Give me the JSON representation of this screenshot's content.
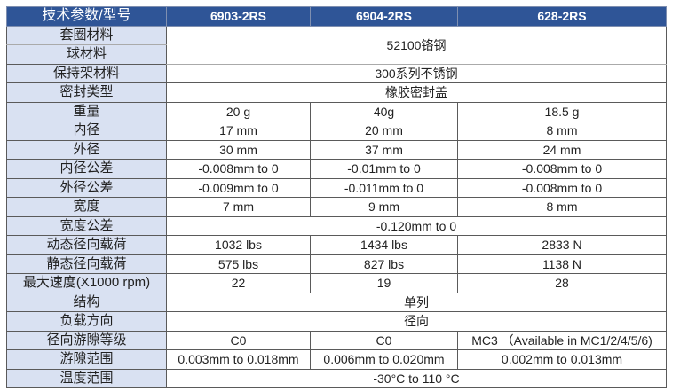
{
  "header": [
    "技术参数/型号",
    "6903-2RS",
    "6904-2RS",
    "628-2RS"
  ],
  "colors": {
    "header_bg": "#2F5597",
    "label_bg": "#D9E1F2"
  },
  "rows": [
    {
      "label": "套圈材料",
      "merged": "52100铬钢",
      "rowspan": 2
    },
    {
      "label": "球材料"
    },
    {
      "label": "保持架材料",
      "merged": "300系列不锈钢"
    },
    {
      "label": "密封类型",
      "merged": "橡胶密封盖"
    },
    {
      "label": "重量",
      "values": [
        "20 g",
        "40g",
        "18.5 g"
      ]
    },
    {
      "label": "内径",
      "values": [
        "17 mm",
        "20 mm",
        "8 mm"
      ]
    },
    {
      "label": "外径",
      "values": [
        "30 mm",
        "37 mm",
        "24 mm"
      ]
    },
    {
      "label": "内径公差",
      "values": [
        "-0.008mm to 0",
        "-0.01mm to 0",
        "-0.008mm to 0"
      ]
    },
    {
      "label": "外径公差",
      "values": [
        "-0.009mm to 0",
        "-0.011mm to 0",
        "-0.008mm to 0"
      ]
    },
    {
      "label": "宽度",
      "values": [
        "7 mm",
        "9 mm",
        "8 mm"
      ]
    },
    {
      "label": "宽度公差",
      "merged": "-0.120mm to 0"
    },
    {
      "label": "动态径向载荷",
      "values": [
        "1032 lbs",
        "1434 lbs",
        "2833 N"
      ]
    },
    {
      "label": "静态径向载荷",
      "values": [
        "575 lbs",
        "827 lbs",
        "1138 N"
      ]
    },
    {
      "label": "最大速度(X1000 rpm)",
      "values": [
        "22",
        "19",
        "28"
      ]
    },
    {
      "label": "结构",
      "merged": "单列"
    },
    {
      "label": "负载方向",
      "merged": "径向"
    },
    {
      "label": "径向游隙等级",
      "values": [
        "C0",
        "C0",
        "MC3 （Available in MC1/2/4/5/6)"
      ]
    },
    {
      "label": "游隙范围",
      "values": [
        "0.003mm to 0.018mm",
        "0.006mm to 0.020mm",
        "0.002mm to 0.013mm"
      ]
    },
    {
      "label": "温度范围",
      "merged": "-30°C to 110 °C"
    }
  ]
}
